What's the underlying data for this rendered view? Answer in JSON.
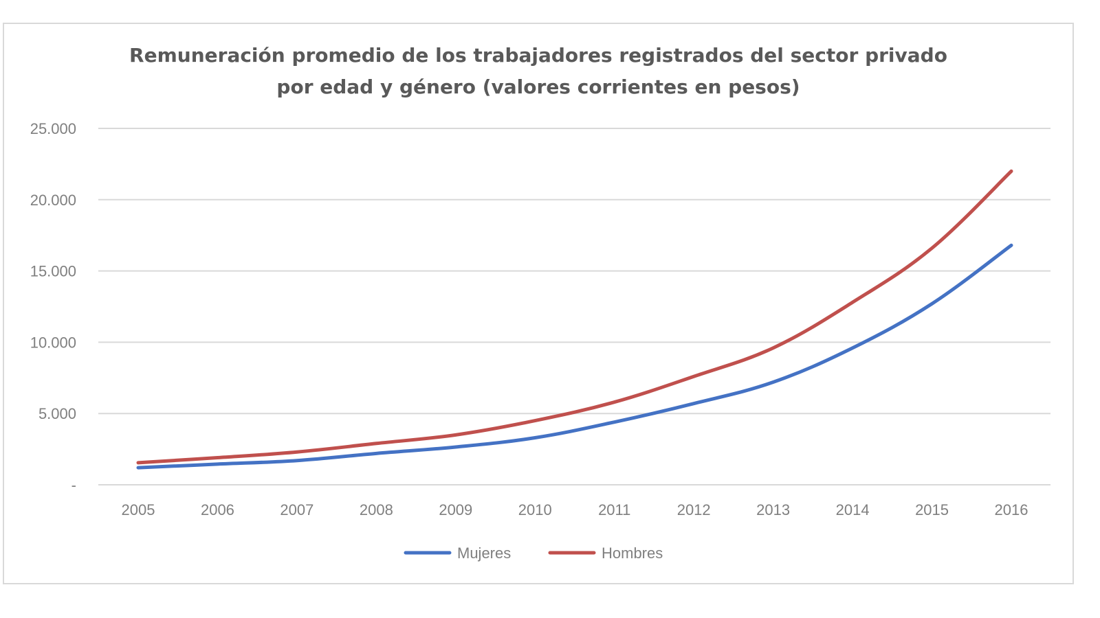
{
  "chart_data": {
    "type": "line",
    "title": "Remuneración promedio de los trabajadores registrados del sector privado por edad y género (valores corrientes en pesos)",
    "title_lines": [
      "Remuneración promedio de los trabajadores registrados del sector privado",
      "por edad y género (valores corrientes en pesos)"
    ],
    "xlabel": "",
    "ylabel": "",
    "x": [
      "2005",
      "2006",
      "2007",
      "2008",
      "2009",
      "2010",
      "2011",
      "2012",
      "2013",
      "2014",
      "2015",
      "2016"
    ],
    "ylim": [
      0,
      25000
    ],
    "yticks": [
      0,
      5000,
      10000,
      15000,
      20000,
      25000
    ],
    "ytick_labels": [
      "-",
      "5.000",
      "10.000",
      "15.000",
      "20.000",
      "25.000"
    ],
    "grid": true,
    "legend_position": "bottom",
    "series": [
      {
        "name": "Mujeres",
        "color": "#4472c4",
        "values": [
          1200,
          1450,
          1700,
          2200,
          2650,
          3300,
          4400,
          5700,
          7200,
          9600,
          12700,
          16800
        ]
      },
      {
        "name": "Hombres",
        "color": "#c0504d",
        "values": [
          1550,
          1900,
          2300,
          2900,
          3500,
          4500,
          5800,
          7600,
          9600,
          12800,
          16600,
          22000
        ]
      }
    ]
  }
}
